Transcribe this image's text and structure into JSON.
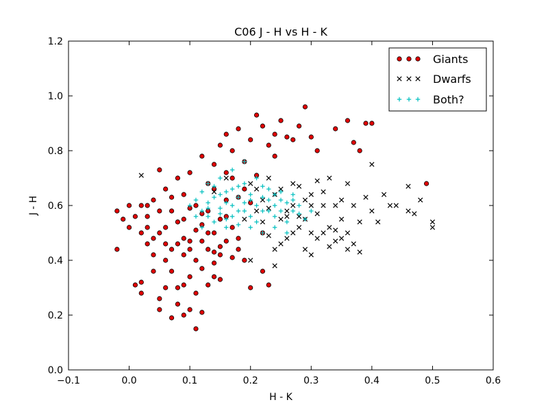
{
  "chart_data": {
    "type": "scatter",
    "title": "C06 J - H vs H - K",
    "xlabel": "H - K",
    "ylabel": "J - H",
    "xlim": [
      -0.1,
      0.6
    ],
    "ylim": [
      0.0,
      1.2
    ],
    "xticks": [
      -0.1,
      0.0,
      0.1,
      0.2,
      0.3,
      0.4,
      0.5,
      0.6
    ],
    "xtick_labels": [
      "−0.1",
      "0.0",
      "0.1",
      "0.2",
      "0.3",
      "0.4",
      "0.5",
      "0.6"
    ],
    "yticks": [
      0.0,
      0.2,
      0.4,
      0.6,
      0.8,
      1.0,
      1.2
    ],
    "ytick_labels": [
      "0.0",
      "0.2",
      "0.4",
      "0.6",
      "0.8",
      "1.0",
      "1.2"
    ],
    "grid": false,
    "legend_position": "top-right",
    "series": [
      {
        "name": "Giants",
        "marker": "circle",
        "color": "#e00000",
        "edge": "#000000",
        "points": [
          [
            -0.02,
            0.58
          ],
          [
            -0.02,
            0.44
          ],
          [
            -0.01,
            0.55
          ],
          [
            0.0,
            0.6
          ],
          [
            0.0,
            0.52
          ],
          [
            0.01,
            0.31
          ],
          [
            0.02,
            0.32
          ],
          [
            0.02,
            0.28
          ],
          [
            0.02,
            0.5
          ],
          [
            0.03,
            0.46
          ],
          [
            0.03,
            0.56
          ],
          [
            0.04,
            0.62
          ],
          [
            0.04,
            0.48
          ],
          [
            0.05,
            0.26
          ],
          [
            0.05,
            0.22
          ],
          [
            0.05,
            0.73
          ],
          [
            0.06,
            0.4
          ],
          [
            0.06,
            0.66
          ],
          [
            0.06,
            0.52
          ],
          [
            0.07,
            0.36
          ],
          [
            0.07,
            0.19
          ],
          [
            0.07,
            0.58
          ],
          [
            0.08,
            0.7
          ],
          [
            0.08,
            0.3
          ],
          [
            0.08,
            0.46
          ],
          [
            0.09,
            0.2
          ],
          [
            0.09,
            0.64
          ],
          [
            0.09,
            0.55
          ],
          [
            0.1,
            0.34
          ],
          [
            0.1,
            0.72
          ],
          [
            0.1,
            0.47
          ],
          [
            0.11,
            0.28
          ],
          [
            0.11,
            0.15
          ],
          [
            0.11,
            0.6
          ],
          [
            0.12,
            0.53
          ],
          [
            0.12,
            0.21
          ],
          [
            0.12,
            0.78
          ],
          [
            0.13,
            0.44
          ],
          [
            0.13,
            0.68
          ],
          [
            0.14,
            0.39
          ],
          [
            0.14,
            0.75
          ],
          [
            0.14,
            0.5
          ],
          [
            0.15,
            0.45
          ],
          [
            0.15,
            0.82
          ],
          [
            0.15,
            0.33
          ],
          [
            0.16,
            0.56
          ],
          [
            0.16,
            0.86
          ],
          [
            0.17,
            0.41
          ],
          [
            0.17,
            0.7
          ],
          [
            0.18,
            0.88
          ],
          [
            0.18,
            0.48
          ],
          [
            0.19,
            0.76
          ],
          [
            0.19,
            0.4
          ],
          [
            0.2,
            0.84
          ],
          [
            0.2,
            0.3
          ],
          [
            0.21,
            0.93
          ],
          [
            0.21,
            0.71
          ],
          [
            0.22,
            0.89
          ],
          [
            0.22,
            0.5
          ],
          [
            0.22,
            0.36
          ],
          [
            0.23,
            0.31
          ],
          [
            0.23,
            0.82
          ],
          [
            0.24,
            0.86
          ],
          [
            0.24,
            0.78
          ],
          [
            0.25,
            0.91
          ],
          [
            0.26,
            0.85
          ],
          [
            0.27,
            0.84
          ],
          [
            0.28,
            0.89
          ],
          [
            0.29,
            0.96
          ],
          [
            0.3,
            0.85
          ],
          [
            0.31,
            0.8
          ],
          [
            0.34,
            0.88
          ],
          [
            0.36,
            0.91
          ],
          [
            0.37,
            0.83
          ],
          [
            0.38,
            0.8
          ],
          [
            0.39,
            0.9
          ],
          [
            0.4,
            0.9
          ],
          [
            0.49,
            0.68
          ],
          [
            0.03,
            0.6
          ],
          [
            0.04,
            0.42
          ],
          [
            0.05,
            0.58
          ],
          [
            0.06,
            0.46
          ],
          [
            0.07,
            0.63
          ],
          [
            0.09,
            0.42
          ],
          [
            0.1,
            0.59
          ],
          [
            0.12,
            0.47
          ],
          [
            0.13,
            0.58
          ],
          [
            0.15,
            0.42
          ],
          [
            0.16,
            0.72
          ],
          [
            0.18,
            0.63
          ],
          [
            0.19,
            0.66
          ],
          [
            0.2,
            0.61
          ],
          [
            0.12,
            0.37
          ],
          [
            0.14,
            0.34
          ],
          [
            0.08,
            0.24
          ],
          [
            0.09,
            0.31
          ],
          [
            0.1,
            0.22
          ],
          [
            0.06,
            0.3
          ],
          [
            0.04,
            0.36
          ],
          [
            0.07,
            0.44
          ],
          [
            0.11,
            0.4
          ],
          [
            0.13,
            0.31
          ],
          [
            0.16,
            0.62
          ],
          [
            0.17,
            0.8
          ],
          [
            0.14,
            0.66
          ],
          [
            0.11,
            0.51
          ],
          [
            0.05,
            0.5
          ],
          [
            0.03,
            0.52
          ],
          [
            0.01,
            0.56
          ],
          [
            0.02,
            0.6
          ],
          [
            0.08,
            0.54
          ],
          [
            0.09,
            0.48
          ],
          [
            0.1,
            0.44
          ],
          [
            0.12,
            0.57
          ],
          [
            0.13,
            0.5
          ],
          [
            0.15,
            0.55
          ],
          [
            0.16,
            0.47
          ],
          [
            0.17,
            0.52
          ],
          [
            0.18,
            0.44
          ],
          [
            0.14,
            0.43
          ]
        ]
      },
      {
        "name": "Dwarfs",
        "marker": "x",
        "color": "#000000",
        "points": [
          [
            0.02,
            0.71
          ],
          [
            0.14,
            0.65
          ],
          [
            0.16,
            0.7
          ],
          [
            0.2,
            0.68
          ],
          [
            0.22,
            0.62
          ],
          [
            0.24,
            0.64
          ],
          [
            0.25,
            0.55
          ],
          [
            0.26,
            0.58
          ],
          [
            0.27,
            0.6
          ],
          [
            0.28,
            0.52
          ],
          [
            0.28,
            0.67
          ],
          [
            0.29,
            0.55
          ],
          [
            0.3,
            0.6
          ],
          [
            0.3,
            0.5
          ],
          [
            0.31,
            0.57
          ],
          [
            0.32,
            0.65
          ],
          [
            0.33,
            0.52
          ],
          [
            0.33,
            0.7
          ],
          [
            0.34,
            0.6
          ],
          [
            0.34,
            0.47
          ],
          [
            0.35,
            0.55
          ],
          [
            0.36,
            0.68
          ],
          [
            0.36,
            0.5
          ],
          [
            0.37,
            0.6
          ],
          [
            0.37,
            0.46
          ],
          [
            0.38,
            0.54
          ],
          [
            0.38,
            0.43
          ],
          [
            0.39,
            0.63
          ],
          [
            0.4,
            0.75
          ],
          [
            0.4,
            0.58
          ],
          [
            0.41,
            0.54
          ],
          [
            0.42,
            0.64
          ],
          [
            0.43,
            0.6
          ],
          [
            0.46,
            0.67
          ],
          [
            0.47,
            0.57
          ],
          [
            0.48,
            0.62
          ],
          [
            0.5,
            0.54
          ],
          [
            0.5,
            0.52
          ],
          [
            0.46,
            0.58
          ],
          [
            0.44,
            0.6
          ],
          [
            0.22,
            0.54
          ],
          [
            0.23,
            0.49
          ],
          [
            0.24,
            0.44
          ],
          [
            0.25,
            0.46
          ],
          [
            0.26,
            0.48
          ],
          [
            0.27,
            0.5
          ],
          [
            0.24,
            0.38
          ],
          [
            0.29,
            0.44
          ],
          [
            0.31,
            0.48
          ],
          [
            0.32,
            0.5
          ],
          [
            0.3,
            0.42
          ],
          [
            0.33,
            0.45
          ],
          [
            0.35,
            0.48
          ],
          [
            0.36,
            0.44
          ],
          [
            0.34,
            0.51
          ],
          [
            0.2,
            0.4
          ],
          [
            0.19,
            0.55
          ],
          [
            0.21,
            0.58
          ],
          [
            0.23,
            0.59
          ],
          [
            0.26,
            0.56
          ],
          [
            0.28,
            0.56
          ],
          [
            0.3,
            0.64
          ],
          [
            0.31,
            0.69
          ],
          [
            0.32,
            0.6
          ],
          [
            0.35,
            0.62
          ],
          [
            0.29,
            0.62
          ],
          [
            0.27,
            0.68
          ],
          [
            0.25,
            0.66
          ],
          [
            0.23,
            0.7
          ],
          [
            0.21,
            0.66
          ]
        ]
      },
      {
        "name": "Both?",
        "marker": "plus",
        "color": "#00bfbf",
        "points": [
          [
            0.1,
            0.6
          ],
          [
            0.11,
            0.62
          ],
          [
            0.12,
            0.58
          ],
          [
            0.12,
            0.65
          ],
          [
            0.13,
            0.61
          ],
          [
            0.13,
            0.56
          ],
          [
            0.14,
            0.63
          ],
          [
            0.14,
            0.67
          ],
          [
            0.15,
            0.59
          ],
          [
            0.15,
            0.64
          ],
          [
            0.16,
            0.61
          ],
          [
            0.16,
            0.55
          ],
          [
            0.17,
            0.66
          ],
          [
            0.17,
            0.6
          ],
          [
            0.18,
            0.58
          ],
          [
            0.18,
            0.63
          ],
          [
            0.19,
            0.61
          ],
          [
            0.19,
            0.68
          ],
          [
            0.2,
            0.56
          ],
          [
            0.2,
            0.64
          ],
          [
            0.21,
            0.6
          ],
          [
            0.21,
            0.54
          ],
          [
            0.22,
            0.63
          ],
          [
            0.22,
            0.67
          ],
          [
            0.23,
            0.58
          ],
          [
            0.23,
            0.62
          ],
          [
            0.24,
            0.6
          ],
          [
            0.24,
            0.56
          ],
          [
            0.25,
            0.62
          ],
          [
            0.25,
            0.58
          ],
          [
            0.26,
            0.61
          ],
          [
            0.26,
            0.54
          ],
          [
            0.27,
            0.58
          ],
          [
            0.27,
            0.62
          ],
          [
            0.28,
            0.6
          ],
          [
            0.28,
            0.57
          ],
          [
            0.29,
            0.55
          ],
          [
            0.3,
            0.58
          ],
          [
            0.15,
            0.7
          ],
          [
            0.17,
            0.73
          ],
          [
            0.19,
            0.76
          ],
          [
            0.18,
            0.53
          ],
          [
            0.2,
            0.52
          ],
          [
            0.22,
            0.5
          ],
          [
            0.24,
            0.52
          ],
          [
            0.26,
            0.5
          ],
          [
            0.12,
            0.52
          ],
          [
            0.11,
            0.56
          ],
          [
            0.14,
            0.54
          ],
          [
            0.16,
            0.52
          ],
          [
            0.13,
            0.68
          ],
          [
            0.21,
            0.7
          ],
          [
            0.23,
            0.66
          ],
          [
            0.25,
            0.65
          ],
          [
            0.27,
            0.64
          ],
          [
            0.16,
            0.65
          ],
          [
            0.18,
            0.67
          ],
          [
            0.2,
            0.62
          ],
          [
            0.22,
            0.58
          ],
          [
            0.24,
            0.64
          ],
          [
            0.19,
            0.58
          ],
          [
            0.17,
            0.56
          ],
          [
            0.15,
            0.57
          ],
          [
            0.13,
            0.59
          ]
        ]
      }
    ]
  }
}
